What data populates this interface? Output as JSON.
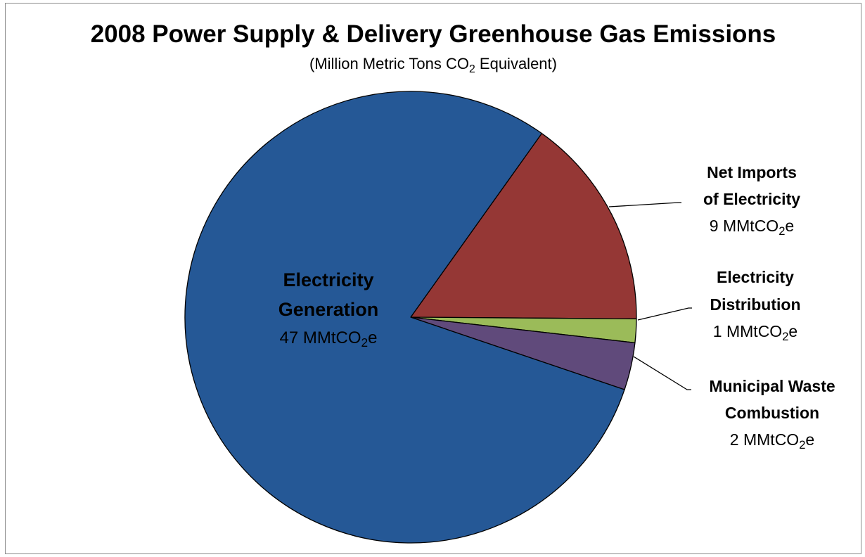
{
  "chart_data": {
    "type": "pie",
    "title": "2008 Power Supply & Delivery Greenhouse Gas Emissions",
    "subtitle": {
      "prefix": "(Million Metric Tons CO",
      "subscript": "2",
      "suffix": " Equivalent)"
    },
    "unit": {
      "prefix": "MMtCO",
      "subscript": "2",
      "suffix": "e"
    },
    "start_angle_deg": 35.5,
    "direction": "clockwise",
    "slices": [
      {
        "name_lines": [
          "Net Imports",
          "of Electricity"
        ],
        "value": 9,
        "value_text": "9",
        "color": "#953735"
      },
      {
        "name_lines": [
          "Electricity",
          "Distribution"
        ],
        "value": 1,
        "value_text": "1",
        "color": "#9BBB59"
      },
      {
        "name_lines": [
          "Municipal Waste",
          "Combustion"
        ],
        "value": 2,
        "value_text": "2",
        "color": "#604A7B"
      },
      {
        "name_lines": [
          "Electricity",
          "Generation"
        ],
        "value": 47,
        "value_text": "47",
        "color": "#255896"
      }
    ],
    "labels_position": "outside-right with leader lines; largest slice labelled inside"
  }
}
